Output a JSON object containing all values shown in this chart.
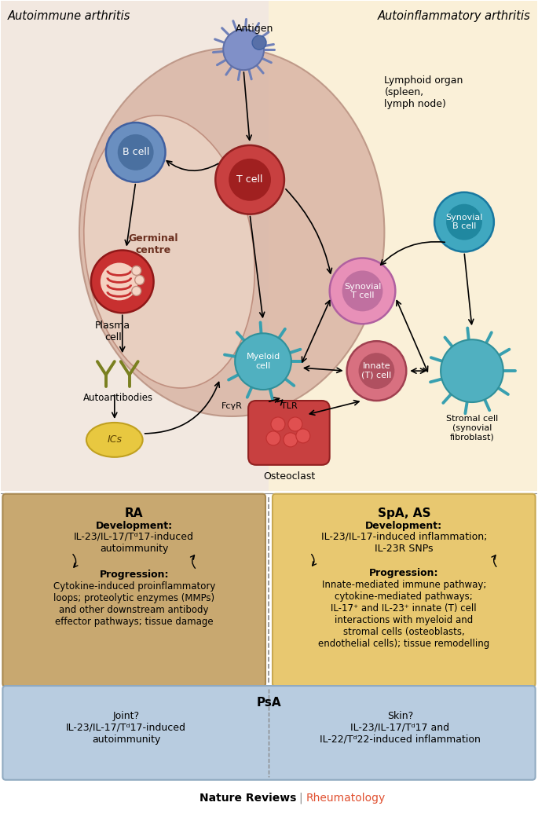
{
  "bg_left_color": "#f2e8e0",
  "bg_right_color": "#faf0d8",
  "title_left": "Autoimmune arthritis",
  "title_right": "Autoinflammatory arthritis",
  "footer_left": "Nature Reviews",
  "footer_sep": " | ",
  "footer_right": "Rheumatology",
  "lymphoid_label": "Lymphoid organ\n(spleen,\nlymph node)",
  "germinal_label": "Germinal\ncentre",
  "antigen_label": "Antigen",
  "bcell_label": "B cell",
  "tcell_label": "T cell",
  "plasma_label": "Plasma\ncell",
  "auto_label": "Autoantibodies",
  "ic_label": "ICs",
  "synovial_b_label": "Synovial\nB cell",
  "synovial_t_label": "Synovial\nT cell",
  "myeloid_label": "Myeloid\ncell",
  "fcgr_label": "FcγR",
  "tlr_label": "TLR",
  "innate_label": "Innate\n(T) cell",
  "stromal_label": "Stromal cell\n(synovial\nfibroblast)",
  "osteoclast_label": "Osteoclast",
  "ra_title": "RA",
  "ra_dev_title": "Development:",
  "ra_dev_text": "IL-23/IL-17/Tᵈ17-induced\nautoimmunity",
  "ra_prog_title": "Progression:",
  "ra_prog_text": "Cytokine-induced proinflammatory\nloops; proteolytic enzymes (MMPs)\nand other downstream antibody\neffector pathways; tissue damage",
  "spa_title": "SpA, AS",
  "spa_dev_title": "Development:",
  "spa_dev_text": "IL-23/IL-17-induced inflammation;\nIL-23R SNPs",
  "spa_prog_title": "Progression:",
  "spa_prog_text": "Innate-mediated immune pathway;\ncytokine-mediated pathways;\nIL-17⁺ and IL-23⁺ innate (T) cell\ninteractions with myeloid and\nstromal cells (osteoblasts,\nendothelial cells); tissue remodelling",
  "psa_title": "PsA",
  "psa_left_text": "Joint?\nIL-23/IL-17/Tᵈ17-induced\nautoimmunity",
  "psa_right_text": "Skin?\nIL-23/IL-17/Tᵈ17 and\nIL-22/Tᵈ22-induced inflammation",
  "outer_ellipse_color": "#d9b5a5",
  "inner_ellipse_color": "#e8cfc0",
  "bcell_color": "#6a8fc0",
  "bcell_inner": "#4a70a0",
  "tcell_color": "#c84040",
  "tcell_inner": "#a02020",
  "plasma_color": "#c83030",
  "plasma_inner": "#f0c0b0",
  "synovial_b_color": "#40a8c0",
  "synovial_b_inner": "#2088a0",
  "synovial_t_color": "#e890b8",
  "synovial_t_inner": "#c070a0",
  "myeloid_color": "#50b0c0",
  "myeloid_edge": "#30909a",
  "innate_color": "#d87080",
  "innate_inner": "#b05060",
  "stromal_color": "#50b0c0",
  "stromal_edge": "#30909a",
  "osteoclast_color": "#c84040",
  "ic_color": "#e8c840",
  "ic_edge": "#c0a020",
  "antigen_color": "#8090c8",
  "antigen_edge": "#6070a8",
  "ra_box_color": "#c8a870",
  "ra_box_edge": "#a88850",
  "spa_box_color": "#e8c870",
  "spa_box_edge": "#c8a850",
  "psa_box_color": "#b8cce0",
  "psa_box_edge": "#90aac0"
}
